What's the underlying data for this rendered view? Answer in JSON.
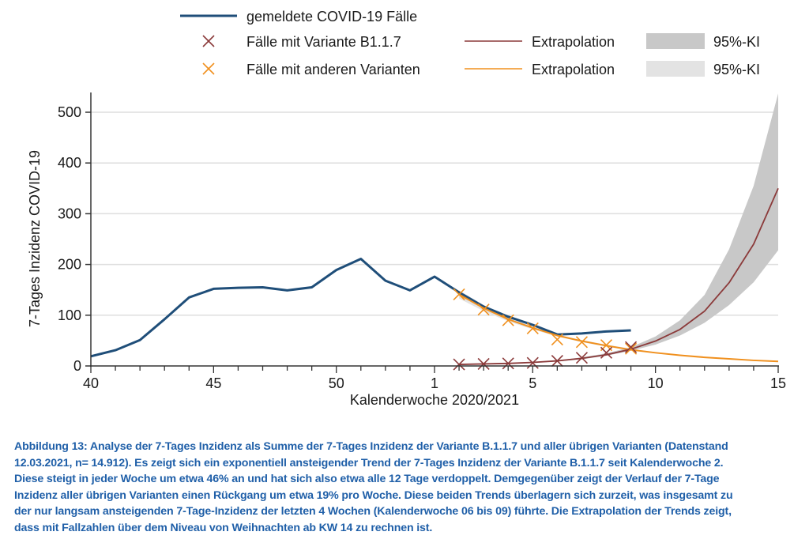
{
  "chart_data": {
    "type": "line",
    "title": "",
    "xlabel": "Kalenderwoche 2020/2021",
    "ylabel": "7-Tages Inzidenz COVID-19",
    "ylim": [
      0,
      540
    ],
    "yticks": [
      0,
      100,
      200,
      300,
      400,
      500
    ],
    "grid": "horizontal",
    "weeks": [
      "40",
      "41",
      "42",
      "43",
      "44",
      "45",
      "46",
      "47",
      "48",
      "49",
      "50",
      "51",
      "52",
      "53",
      "1",
      "2",
      "3",
      "4",
      "5",
      "6",
      "7",
      "8",
      "9",
      "10",
      "11",
      "12",
      "13",
      "14",
      "15"
    ],
    "xtick_labels": [
      {
        "week": "40",
        "label": "40"
      },
      {
        "week": "45",
        "label": "45"
      },
      {
        "week": "50",
        "label": "50"
      },
      {
        "week": "1",
        "label": "1"
      },
      {
        "week": "5",
        "label": "5"
      },
      {
        "week": "10",
        "label": "10"
      },
      {
        "week": "15",
        "label": "15"
      }
    ],
    "legend": {
      "placement": "top",
      "entries": [
        {
          "id": "reported",
          "label": "gemeldete COVID-19 Fälle",
          "kind": "line",
          "color": "#1f4e79"
        },
        {
          "id": "b117",
          "label": "Fälle mit Variante B1.1.7",
          "kind": "marker",
          "color": "#8b3a3a"
        },
        {
          "id": "b117_extrap",
          "label": "Extrapolation",
          "kind": "line",
          "color": "#8b3a3a"
        },
        {
          "id": "b117_ci",
          "label": "95%-KI",
          "kind": "band",
          "color": "#c8c8c8"
        },
        {
          "id": "other",
          "label": "Fälle mit anderen Varianten",
          "kind": "marker",
          "color": "#f0901e"
        },
        {
          "id": "other_extrap",
          "label": "Extrapolation",
          "kind": "line",
          "color": "#f0901e"
        },
        {
          "id": "other_ci",
          "label": "95%-KI",
          "kind": "band",
          "color": "#e3e3e3"
        }
      ]
    },
    "series": [
      {
        "id": "reported",
        "name": "gemeldete COVID-19 Fälle",
        "x": [
          "40",
          "41",
          "42",
          "43",
          "44",
          "45",
          "46",
          "47",
          "48",
          "49",
          "50",
          "51",
          "52",
          "53",
          "1",
          "2",
          "3",
          "4",
          "5",
          "6",
          "7",
          "8",
          "9"
        ],
        "values": [
          19,
          31,
          51,
          92,
          135,
          152,
          154,
          155,
          149,
          155,
          189,
          211,
          168,
          149,
          176,
          145,
          117,
          97,
          81,
          62,
          64,
          68,
          70
        ]
      },
      {
        "id": "b117",
        "name": "Fälle mit Variante B1.1.7",
        "x": [
          "2",
          "3",
          "4",
          "5",
          "6",
          "7",
          "8",
          "9"
        ],
        "values": [
          3,
          4,
          5,
          6,
          10,
          16,
          26,
          37
        ]
      },
      {
        "id": "other",
        "name": "Fälle mit anderen Varianten",
        "x": [
          "2",
          "3",
          "4",
          "5",
          "6",
          "7",
          "8",
          "9"
        ],
        "values": [
          141,
          111,
          90,
          74,
          52,
          47,
          41,
          34
        ]
      },
      {
        "id": "b117_extrap",
        "name": "Extrapolation (B1.1.7)",
        "x": [
          "2",
          "3",
          "4",
          "5",
          "6",
          "7",
          "8",
          "9",
          "10",
          "11",
          "12",
          "13",
          "14",
          "15"
        ],
        "values": [
          3,
          4,
          5,
          7,
          10,
          15,
          22,
          33,
          49,
          72,
          108,
          164,
          240,
          350
        ],
        "ci_lower": [
          2,
          3,
          4,
          6,
          9,
          13,
          20,
          30,
          42,
          60,
          85,
          120,
          165,
          228
        ],
        "ci_upper": [
          4,
          5,
          6,
          8,
          11,
          17,
          25,
          37,
          58,
          90,
          140,
          230,
          355,
          537
        ]
      },
      {
        "id": "other_extrap",
        "name": "Extrapolation (andere Varianten)",
        "x": [
          "2",
          "3",
          "4",
          "5",
          "6",
          "7",
          "8",
          "9",
          "10",
          "11",
          "12",
          "13",
          "14",
          "15"
        ],
        "values": [
          141,
          114,
          92,
          75,
          60,
          49,
          40,
          32,
          26,
          21,
          17,
          14,
          11,
          9
        ],
        "ci_lower": [
          133,
          108,
          88,
          72,
          58,
          47,
          38,
          31,
          25,
          20,
          16,
          13,
          10,
          8
        ],
        "ci_upper": [
          149,
          120,
          96,
          78,
          62,
          51,
          42,
          34,
          27,
          22,
          18,
          15,
          12,
          10
        ]
      }
    ]
  },
  "caption": {
    "lines": [
      "Abbildung 13: Analyse der 7-Tages Inzidenz als Summe der 7-Tages Inzidenz der Variante B.1.1.7 und aller übrigen Varianten (Datenstand",
      "12.03.2021, n= 14.912).  Es zeigt sich ein exponentiell ansteigender Trend der 7-Tages Inzidenz der Variante B.1.1.7 seit Kalenderwoche 2.",
      "Diese steigt in jeder Woche um etwa 46% an und hat sich also etwa alle 12 Tage verdoppelt. Demgegenüber zeigt der Verlauf der 7-Tage",
      "Inzidenz aller übrigen Varianten einen Rückgang um etwa 19% pro Woche. Diese beiden Trends überlagern sich zurzeit, was insgesamt zu",
      "der nur langsam ansteigenden 7-Tage-Inzidenz der letzten 4 Wochen (Kalenderwoche 06 bis 09) führte. Die Extrapolation der Trends zeigt,",
      "dass mit Fallzahlen über dem Niveau von Weihnachten ab KW 14 zu rechnen ist."
    ]
  }
}
